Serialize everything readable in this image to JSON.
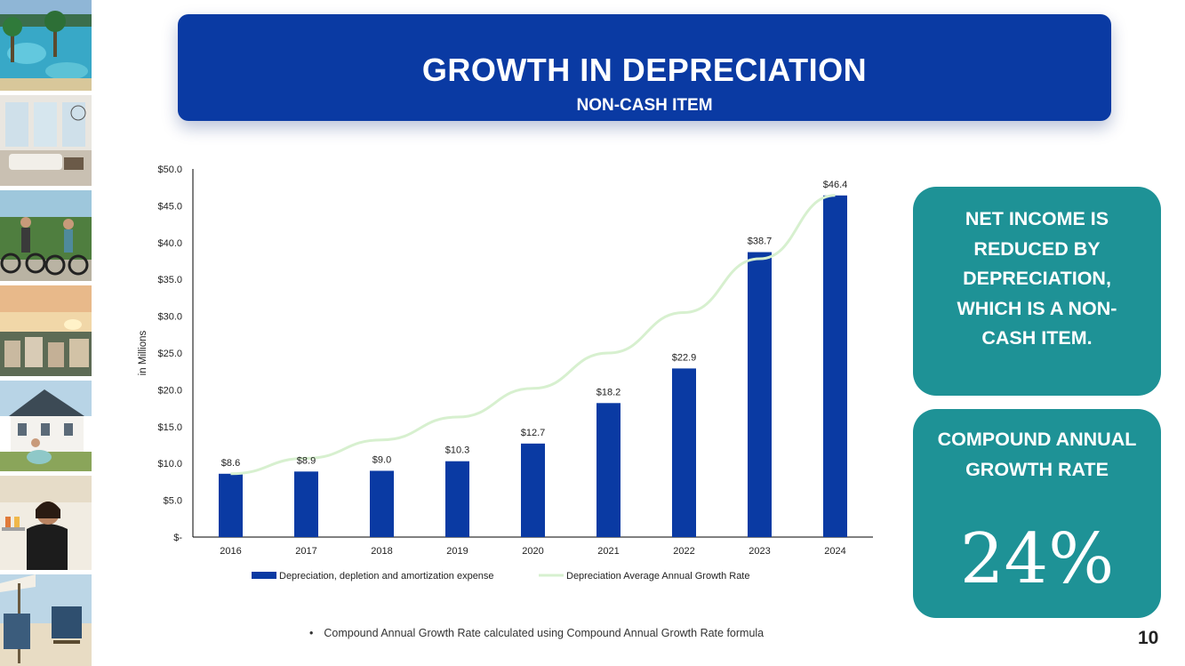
{
  "banner": {
    "title": "GROWTH IN DEPRECIATION",
    "subtitle": "NON-CASH ITEM"
  },
  "chart_data": {
    "type": "bar",
    "categories": [
      "2016",
      "2017",
      "2018",
      "2019",
      "2020",
      "2021",
      "2022",
      "2023",
      "2024"
    ],
    "series": [
      {
        "name": "Depreciation, depletion and amortization expense",
        "type": "bar",
        "color": "#0a3aa3",
        "values": [
          8.6,
          8.9,
          9.0,
          10.3,
          12.7,
          18.2,
          22.9,
          38.7,
          46.4
        ],
        "labels": [
          "$8.6",
          "$8.9",
          "$9.0",
          "$10.3",
          "$12.7",
          "$18.2",
          "$22.9",
          "$38.7",
          "$46.4"
        ]
      },
      {
        "name": "Depreciation Average Annual Growth Rate",
        "type": "line",
        "color": "#d7f0cf",
        "values": [
          8.6,
          10.7,
          13.2,
          16.3,
          20.2,
          25.0,
          30.5,
          37.8,
          46.4
        ]
      }
    ],
    "ylabel": "in Millions",
    "ylim": [
      0,
      50
    ],
    "yticks": [
      0,
      5,
      10,
      15,
      20,
      25,
      30,
      35,
      40,
      45,
      50
    ],
    "ytick_labels": [
      "$-",
      "$5.0",
      "$10.0",
      "$15.0",
      "$20.0",
      "$25.0",
      "$30.0",
      "$35.0",
      "$40.0",
      "$45.0",
      "$50.0"
    ],
    "legend": "bottom",
    "grid": false
  },
  "callouts": {
    "net_income": "NET INCOME IS REDUCED BY DEPRECIATION, WHICH IS A NON-CASH ITEM.",
    "cagr_label": "COMPOUND ANNUAL GROWTH RATE",
    "cagr_value": "24%"
  },
  "footnote": "Compound Annual Growth Rate calculated using Compound Annual Growth Rate formula",
  "footnote_bullet": "•",
  "page_number": "10",
  "colors": {
    "banner": "#0a3aa3",
    "callout": "#1e9296",
    "bar": "#0a3aa3",
    "line": "#d7f0cf"
  },
  "photos": [
    {
      "name": "resort-pool"
    },
    {
      "name": "living-room"
    },
    {
      "name": "bike-riders"
    },
    {
      "name": "sunset-rooftops"
    },
    {
      "name": "house-scooter"
    },
    {
      "name": "server-with-drinks"
    },
    {
      "name": "beach-chairs"
    }
  ]
}
